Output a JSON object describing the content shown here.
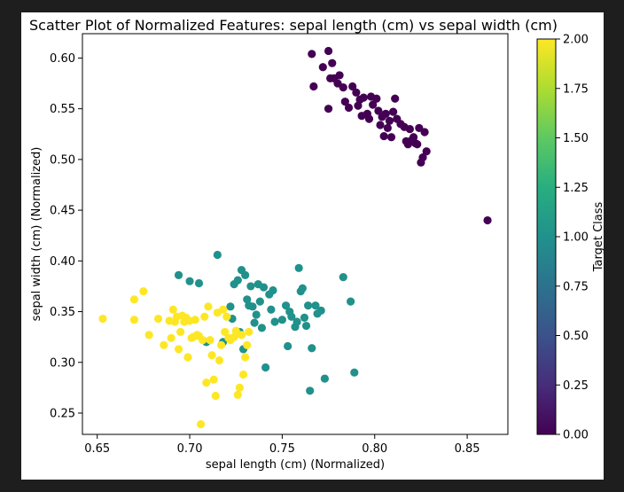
{
  "chart_data": {
    "type": "scatter",
    "title": "Scatter Plot of Normalized Features: sepal length (cm) vs sepal width (cm)",
    "xlabel": "sepal length (cm) (Normalized)",
    "ylabel": "sepal width (cm) (Normalized)",
    "xlim": [
      0.642,
      0.872
    ],
    "ylim": [
      0.229,
      0.624
    ],
    "xticks": [
      0.65,
      0.7,
      0.75,
      0.8,
      0.85
    ],
    "xtick_labels": [
      "0.65",
      "0.70",
      "0.75",
      "0.80",
      "0.85"
    ],
    "yticks": [
      0.25,
      0.3,
      0.35,
      0.4,
      0.45,
      0.5,
      0.55,
      0.6
    ],
    "ytick_labels": [
      "0.25",
      "0.30",
      "0.35",
      "0.40",
      "0.45",
      "0.50",
      "0.55",
      "0.60"
    ],
    "grid": false,
    "colorbar": {
      "label": "Target Class",
      "range": [
        0,
        2
      ],
      "ticks": [
        0,
        0.25,
        0.5,
        0.75,
        1.0,
        1.25,
        1.5,
        1.75,
        2.0
      ],
      "tick_labels": [
        "0.00",
        "0.25",
        "0.50",
        "0.75",
        "1.00",
        "1.25",
        "1.50",
        "1.75",
        "2.00"
      ],
      "colors": [
        "#440154",
        "#472d7b",
        "#3b528b",
        "#2c728e",
        "#21918c",
        "#28ae80",
        "#5ec962",
        "#addc30",
        "#fde725"
      ]
    },
    "series": [
      {
        "class_value": 0,
        "color": "#440154",
        "points": [
          [
            0.766,
            0.604
          ],
          [
            0.775,
            0.607
          ],
          [
            0.777,
            0.595
          ],
          [
            0.767,
            0.572
          ],
          [
            0.772,
            0.591
          ],
          [
            0.776,
            0.58
          ],
          [
            0.778,
            0.58
          ],
          [
            0.775,
            0.55
          ],
          [
            0.78,
            0.575
          ],
          [
            0.781,
            0.583
          ],
          [
            0.783,
            0.571
          ],
          [
            0.784,
            0.557
          ],
          [
            0.786,
            0.551
          ],
          [
            0.788,
            0.572
          ],
          [
            0.79,
            0.566
          ],
          [
            0.791,
            0.553
          ],
          [
            0.792,
            0.559
          ],
          [
            0.793,
            0.543
          ],
          [
            0.794,
            0.561
          ],
          [
            0.796,
            0.545
          ],
          [
            0.797,
            0.54
          ],
          [
            0.798,
            0.562
          ],
          [
            0.799,
            0.554
          ],
          [
            0.801,
            0.56
          ],
          [
            0.802,
            0.548
          ],
          [
            0.803,
            0.534
          ],
          [
            0.804,
            0.542
          ],
          [
            0.805,
            0.523
          ],
          [
            0.806,
            0.545
          ],
          [
            0.807,
            0.531
          ],
          [
            0.808,
            0.538
          ],
          [
            0.809,
            0.522
          ],
          [
            0.81,
            0.547
          ],
          [
            0.811,
            0.56
          ],
          [
            0.812,
            0.54
          ],
          [
            0.814,
            0.535
          ],
          [
            0.816,
            0.532
          ],
          [
            0.817,
            0.518
          ],
          [
            0.818,
            0.515
          ],
          [
            0.819,
            0.53
          ],
          [
            0.82,
            0.519
          ],
          [
            0.821,
            0.522
          ],
          [
            0.822,
            0.516
          ],
          [
            0.823,
            0.515
          ],
          [
            0.824,
            0.531
          ],
          [
            0.825,
            0.497
          ],
          [
            0.826,
            0.502
          ],
          [
            0.827,
            0.527
          ],
          [
            0.828,
            0.508
          ],
          [
            0.861,
            0.44
          ]
        ]
      },
      {
        "class_value": 1,
        "color": "#21918c",
        "points": [
          [
            0.694,
            0.386
          ],
          [
            0.7,
            0.38
          ],
          [
            0.705,
            0.378
          ],
          [
            0.709,
            0.32
          ],
          [
            0.715,
            0.406
          ],
          [
            0.718,
            0.32
          ],
          [
            0.722,
            0.355
          ],
          [
            0.723,
            0.343
          ],
          [
            0.724,
            0.377
          ],
          [
            0.726,
            0.381
          ],
          [
            0.727,
            0.33
          ],
          [
            0.728,
            0.391
          ],
          [
            0.729,
            0.313
          ],
          [
            0.73,
            0.386
          ],
          [
            0.731,
            0.362
          ],
          [
            0.732,
            0.356
          ],
          [
            0.733,
            0.375
          ],
          [
            0.734,
            0.355
          ],
          [
            0.735,
            0.339
          ],
          [
            0.736,
            0.347
          ],
          [
            0.737,
            0.377
          ],
          [
            0.738,
            0.36
          ],
          [
            0.739,
            0.334
          ],
          [
            0.74,
            0.374
          ],
          [
            0.741,
            0.295
          ],
          [
            0.743,
            0.367
          ],
          [
            0.744,
            0.352
          ],
          [
            0.745,
            0.371
          ],
          [
            0.746,
            0.34
          ],
          [
            0.75,
            0.342
          ],
          [
            0.752,
            0.356
          ],
          [
            0.753,
            0.316
          ],
          [
            0.754,
            0.35
          ],
          [
            0.755,
            0.345
          ],
          [
            0.757,
            0.335
          ],
          [
            0.758,
            0.34
          ],
          [
            0.759,
            0.393
          ],
          [
            0.76,
            0.37
          ],
          [
            0.761,
            0.373
          ],
          [
            0.762,
            0.344
          ],
          [
            0.763,
            0.336
          ],
          [
            0.764,
            0.356
          ],
          [
            0.765,
            0.272
          ],
          [
            0.766,
            0.314
          ],
          [
            0.768,
            0.356
          ],
          [
            0.769,
            0.348
          ],
          [
            0.771,
            0.351
          ],
          [
            0.773,
            0.284
          ],
          [
            0.783,
            0.384
          ],
          [
            0.787,
            0.36
          ],
          [
            0.789,
            0.29
          ]
        ]
      },
      {
        "class_value": 2,
        "color": "#fde725",
        "points": [
          [
            0.653,
            0.343
          ],
          [
            0.67,
            0.362
          ],
          [
            0.67,
            0.342
          ],
          [
            0.675,
            0.37
          ],
          [
            0.678,
            0.327
          ],
          [
            0.683,
            0.343
          ],
          [
            0.686,
            0.317
          ],
          [
            0.689,
            0.341
          ],
          [
            0.69,
            0.324
          ],
          [
            0.691,
            0.352
          ],
          [
            0.692,
            0.34
          ],
          [
            0.693,
            0.345
          ],
          [
            0.694,
            0.313
          ],
          [
            0.695,
            0.33
          ],
          [
            0.696,
            0.346
          ],
          [
            0.697,
            0.34
          ],
          [
            0.698,
            0.344
          ],
          [
            0.699,
            0.305
          ],
          [
            0.7,
            0.341
          ],
          [
            0.701,
            0.324
          ],
          [
            0.702,
            0.325
          ],
          [
            0.703,
            0.342
          ],
          [
            0.704,
            0.327
          ],
          [
            0.705,
            0.326
          ],
          [
            0.706,
            0.239
          ],
          [
            0.707,
            0.322
          ],
          [
            0.708,
            0.345
          ],
          [
            0.709,
            0.28
          ],
          [
            0.71,
            0.355
          ],
          [
            0.711,
            0.322
          ],
          [
            0.712,
            0.307
          ],
          [
            0.713,
            0.283
          ],
          [
            0.714,
            0.267
          ],
          [
            0.715,
            0.349
          ],
          [
            0.716,
            0.302
          ],
          [
            0.717,
            0.317
          ],
          [
            0.718,
            0.352
          ],
          [
            0.719,
            0.33
          ],
          [
            0.72,
            0.345
          ],
          [
            0.721,
            0.324
          ],
          [
            0.722,
            0.322
          ],
          [
            0.724,
            0.325
          ],
          [
            0.725,
            0.331
          ],
          [
            0.726,
            0.268
          ],
          [
            0.727,
            0.275
          ],
          [
            0.728,
            0.327
          ],
          [
            0.729,
            0.288
          ],
          [
            0.73,
            0.305
          ],
          [
            0.731,
            0.317
          ],
          [
            0.732,
            0.33
          ]
        ]
      }
    ]
  }
}
